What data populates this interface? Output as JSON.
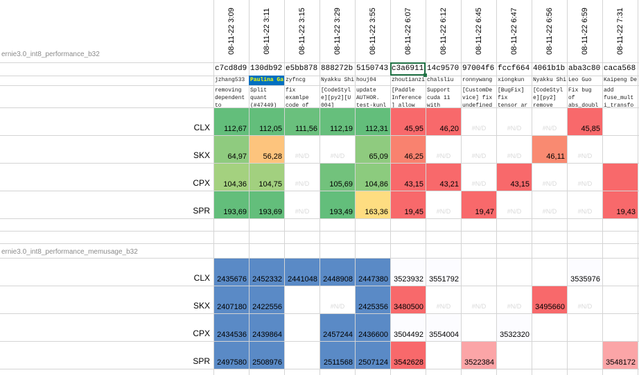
{
  "sections": [
    {
      "title": "ernie3.0_int8_performance_b32"
    },
    {
      "title": "ernie3.0_int8_performance_memusage_b32"
    }
  ],
  "columns": [
    {
      "date": "08-11-22 3:09",
      "hash": "c7cd8d9",
      "author": "jzhang533",
      "msg": "removing\ndependent\nto"
    },
    {
      "date": "08-11-22 3:11",
      "hash": "130db92",
      "author": "Paulina Ga",
      "msg": "Split\nquant\n(#47449)"
    },
    {
      "date": "08-11-22 3:15",
      "hash": "e5bb878",
      "author": "zyfncg",
      "msg": "fix\nexamlpe\ncode of"
    },
    {
      "date": "08-11-22 3:29",
      "hash": "888272b",
      "author": "Nyakku Shi",
      "msg": "[CodeStyl\ne][py2][U\n004]"
    },
    {
      "date": "08-11-22 3:55",
      "hash": "5150743",
      "author": "houj04",
      "msg": "update\nAUTHOR.\ntest-kunl"
    },
    {
      "date": "08-11-22 6:07",
      "hash": "c3a6911",
      "author": "zhoutianzi",
      "msg": "[Paddle\nInference\n] allow"
    },
    {
      "date": "08-11-22 6:12",
      "hash": "14c9570",
      "author": "chalsliu",
      "msg": "Support\ncuda 11\nwith"
    },
    {
      "date": "08-11-22 6:45",
      "hash": "97004f6",
      "author": "ronnywang",
      "msg": "[CustomDe\nvice] fix\nundefined"
    },
    {
      "date": "08-11-22 6:47",
      "hash": "fccf664",
      "author": "xiongkun",
      "msg": "[BugFix]\nfix\ntensor ar"
    },
    {
      "date": "08-11-22 6:56",
      "hash": "4061b1b",
      "author": "Nyakku Shi",
      "msg": "[CodeStyl\ne][py2]\nremove"
    },
    {
      "date": "08-11-22 6:59",
      "hash": "aba3c80",
      "author": "Leo Guo",
      "msg": "Fix bug\nof\nabs_doubl"
    },
    {
      "date": "08-11-22 7:31",
      "hash": "caca568",
      "author": "Kaipeng De",
      "msg": "add\nfuse_mult\ni_transfo"
    }
  ],
  "performance": [
    {
      "label": "CLX",
      "cells": [
        {
          "v": "112,67",
          "c": "#63be7b"
        },
        {
          "v": "112,05",
          "c": "#63be7b"
        },
        {
          "v": "111,56",
          "c": "#6ac07d"
        },
        {
          "v": "112,19",
          "c": "#66bf7c"
        },
        {
          "v": "112,31",
          "c": "#63be7b"
        },
        {
          "v": "45,95",
          "c": "#f8696b"
        },
        {
          "v": "46,20",
          "c": "#f8696b"
        },
        {
          "v": "#N/D",
          "c": ""
        },
        {
          "v": "#N/D",
          "c": ""
        },
        {
          "v": "#N/D",
          "c": ""
        },
        {
          "v": "45,85",
          "c": "#f8696b"
        },
        {
          "v": "",
          "c": ""
        }
      ]
    },
    {
      "label": "SKX",
      "cells": [
        {
          "v": "64,97",
          "c": "#8fcb7f"
        },
        {
          "v": "56,28",
          "c": "#fdc47d"
        },
        {
          "v": "#N/D",
          "c": ""
        },
        {
          "v": "#N/D",
          "c": ""
        },
        {
          "v": "65,09",
          "c": "#8fcb7f"
        },
        {
          "v": "46,25",
          "c": "#f9826f"
        },
        {
          "v": "#N/D",
          "c": ""
        },
        {
          "v": "#N/D",
          "c": ""
        },
        {
          "v": "#N/D",
          "c": ""
        },
        {
          "v": "46,11",
          "c": "#f98a71"
        },
        {
          "v": "#N/D",
          "c": ""
        },
        {
          "v": "",
          "c": ""
        }
      ]
    },
    {
      "label": "CPX",
      "cells": [
        {
          "v": "104,36",
          "c": "#a4d17f"
        },
        {
          "v": "104,75",
          "c": "#a2d07f"
        },
        {
          "v": "#N/D",
          "c": ""
        },
        {
          "v": "105,69",
          "c": "#72c27c"
        },
        {
          "v": "104,86",
          "c": "#8ccb7e"
        },
        {
          "v": "43,15",
          "c": "#f8696b"
        },
        {
          "v": "43,21",
          "c": "#f8696b"
        },
        {
          "v": "#N/D",
          "c": ""
        },
        {
          "v": "43,15",
          "c": "#f8696b"
        },
        {
          "v": "#N/D",
          "c": ""
        },
        {
          "v": "#N/D",
          "c": ""
        },
        {
          "v": "",
          "c": "#f8696b"
        }
      ]
    },
    {
      "label": "SPR",
      "cells": [
        {
          "v": "193,69",
          "c": "#63be7b"
        },
        {
          "v": "193,69",
          "c": "#63be7b"
        },
        {
          "v": "#N/D",
          "c": ""
        },
        {
          "v": "193,49",
          "c": "#63be7b"
        },
        {
          "v": "163,36",
          "c": "#fedd81"
        },
        {
          "v": "19,45",
          "c": "#f8696b"
        },
        {
          "v": "#N/D",
          "c": ""
        },
        {
          "v": "19,47",
          "c": "#f8696b"
        },
        {
          "v": "#N/D",
          "c": ""
        },
        {
          "v": "#N/D",
          "c": ""
        },
        {
          "v": "#N/D",
          "c": ""
        },
        {
          "v": "19,43",
          "c": "#f8696b"
        }
      ]
    }
  ],
  "memusage": [
    {
      "label": "CLX",
      "cells": [
        {
          "v": "2435676",
          "c": "#5a8ac6"
        },
        {
          "v": "2452332",
          "c": "#5a8ac6"
        },
        {
          "v": "2441048",
          "c": "#5a8ac6"
        },
        {
          "v": "2448908",
          "c": "#5a8ac6"
        },
        {
          "v": "2447380",
          "c": "#5a8ac6"
        },
        {
          "v": "3523932",
          "c": "#fcfcff"
        },
        {
          "v": "3551792",
          "c": "#fcfcff"
        },
        {
          "v": "",
          "c": ""
        },
        {
          "v": "",
          "c": ""
        },
        {
          "v": "",
          "c": ""
        },
        {
          "v": "3535976",
          "c": "#fcfcff"
        },
        {
          "v": "",
          "c": ""
        }
      ]
    },
    {
      "label": "SKX",
      "cells": [
        {
          "v": "2407180",
          "c": "#5a8ac6"
        },
        {
          "v": "2422556",
          "c": "#5a8ac6"
        },
        {
          "v": "",
          "c": ""
        },
        {
          "v": "#N/D",
          "c": ""
        },
        {
          "v": "2425356",
          "c": "#5a8ac6"
        },
        {
          "v": "3480500",
          "c": "#f8696b"
        },
        {
          "v": "#N/D",
          "c": ""
        },
        {
          "v": "#N/D",
          "c": ""
        },
        {
          "v": "#N/D",
          "c": ""
        },
        {
          "v": "3495660",
          "c": "#f8696b"
        },
        {
          "v": "#N/D",
          "c": ""
        },
        {
          "v": "",
          "c": ""
        }
      ]
    },
    {
      "label": "CPX",
      "cells": [
        {
          "v": "2434536",
          "c": "#5a8ac6"
        },
        {
          "v": "2439864",
          "c": "#5a8ac6"
        },
        {
          "v": "",
          "c": ""
        },
        {
          "v": "2457244",
          "c": "#5a8ac6"
        },
        {
          "v": "2436600",
          "c": "#5a8ac6"
        },
        {
          "v": "3504492",
          "c": "#fcfcff"
        },
        {
          "v": "3554004",
          "c": "#fcfcff"
        },
        {
          "v": "",
          "c": ""
        },
        {
          "v": "3532320",
          "c": "#fcfcff"
        },
        {
          "v": "",
          "c": ""
        },
        {
          "v": "",
          "c": ""
        },
        {
          "v": "",
          "c": ""
        }
      ]
    },
    {
      "label": "SPR",
      "cells": [
        {
          "v": "2497580",
          "c": "#5a8ac6"
        },
        {
          "v": "2508976",
          "c": "#5a8ac6"
        },
        {
          "v": "",
          "c": ""
        },
        {
          "v": "2511568",
          "c": "#5a8ac6"
        },
        {
          "v": "2507124",
          "c": "#5a8ac6"
        },
        {
          "v": "3542628",
          "c": "#f8696b"
        },
        {
          "v": "",
          "c": ""
        },
        {
          "v": "3522384",
          "c": "#fba5a7"
        },
        {
          "v": "",
          "c": ""
        },
        {
          "v": "",
          "c": ""
        },
        {
          "v": "",
          "c": ""
        },
        {
          "v": "3548172",
          "c": "#fba5a7"
        }
      ]
    }
  ],
  "accent": {
    "selected_border": "#217346",
    "author_highlight_bg": "#0070c0",
    "author_highlight_text": "#ffff00"
  }
}
